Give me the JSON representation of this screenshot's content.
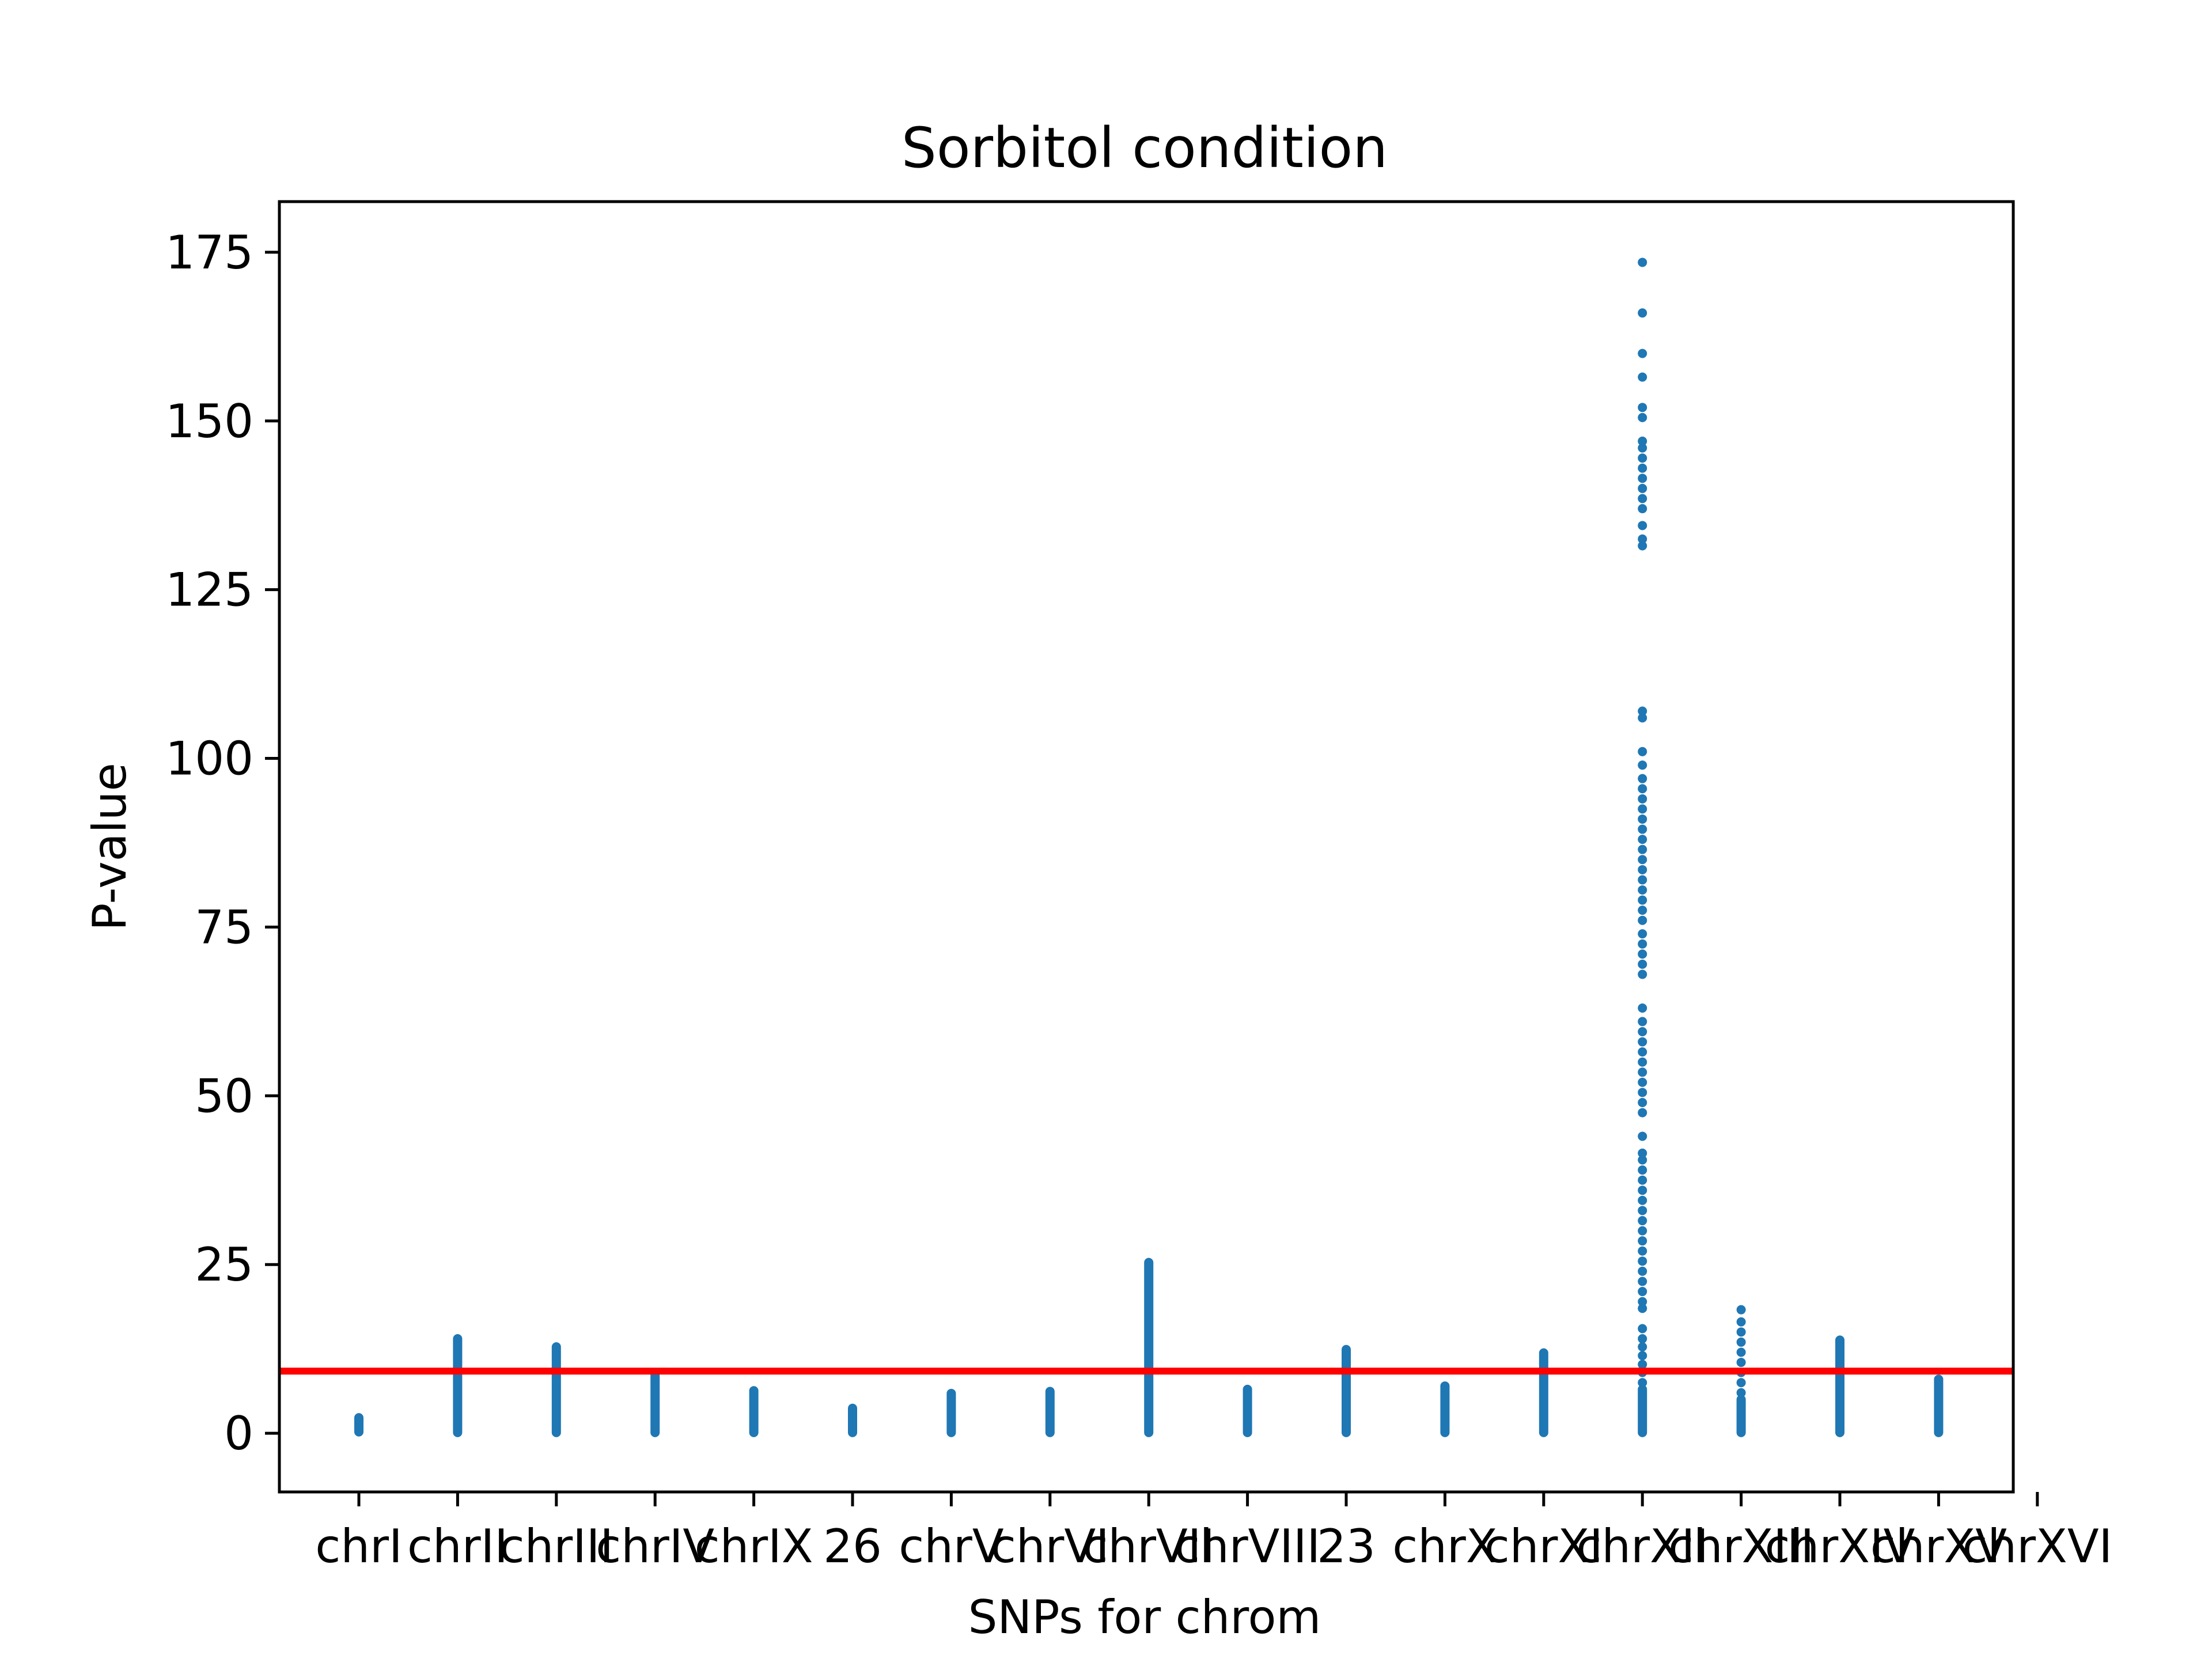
{
  "chart_data": {
    "type": "scatter",
    "title": "Sorbitol condition",
    "xlabel": "SNPs for chrom",
    "ylabel": "P-value",
    "categories": [
      "chrI",
      "chrII",
      "chrIII",
      "chrIV",
      "chrIX",
      "26",
      "chrV",
      "chrVI",
      "chrVII",
      "chrVIII",
      "23",
      "chrX",
      "chrXI",
      "chrXII",
      "chrXIII",
      "chrXIV",
      "chrXV",
      "chrXVI"
    ],
    "ylim": [
      -8.7,
      182.5
    ],
    "yticks": [
      0,
      25,
      50,
      75,
      100,
      125,
      150,
      175
    ],
    "ytick_labels": [
      "0",
      "25",
      "50",
      "75",
      "100",
      "125",
      "150",
      "175"
    ],
    "xtick_labels": [
      "chrI",
      "chrII",
      "chrIII",
      "chrIV",
      "chrIX",
      "26",
      "chrV",
      "chrVI",
      "chrVII",
      "chrVIII",
      "23",
      "chrX",
      "chrXI",
      "chrXII",
      "chrXIII",
      "chrXIV",
      "chrXV",
      "chrXVI"
    ],
    "threshold": 9.2,
    "grid": false,
    "series": [
      {
        "color": "#1f77b4",
        "points": [
          {
            "category": "chrI",
            "min": 0.2,
            "max": 2.3
          },
          {
            "category": "chrII",
            "min": 0.1,
            "max": 14.0
          },
          {
            "category": "chrIII",
            "min": 0.1,
            "max": 12.8
          },
          {
            "category": "chrIV",
            "min": 0.1,
            "max": 8.8
          },
          {
            "category": "chrIX",
            "min": 0.1,
            "max": 6.3
          },
          {
            "category": "26",
            "min": 0.1,
            "max": 3.7
          },
          {
            "category": "chrV",
            "min": 0.1,
            "max": 5.9
          },
          {
            "category": "chrVI",
            "min": 0.1,
            "max": 6.2
          },
          {
            "category": "chrVII",
            "min": 0.1,
            "max": 25.3
          },
          {
            "category": "chrVIII",
            "min": 0.1,
            "max": 6.5
          },
          {
            "category": "23",
            "min": 0.1,
            "max": 12.4
          },
          {
            "category": "chrX",
            "min": 0.1,
            "max": 7.0
          },
          {
            "category": "chrXI",
            "min": 0.1,
            "max": 11.9
          },
          {
            "category": "chrXII",
            "min": 0.1,
            "max": 6.5,
            "extra": [
              7.5,
              9.0,
              10.2,
              11.5,
              12.8,
              14.0,
              15.5,
              18.5,
              19.5,
              21.0,
              22.5,
              24.0,
              25.5,
              27.0,
              28.5,
              30.0,
              31.5,
              33.0,
              34.5,
              36.0,
              37.5,
              39.0,
              40.5,
              41.5,
              44.0,
              47.5,
              49.0,
              50.5,
              52.0,
              53.5,
              55.0,
              56.5,
              58.0,
              59.5,
              61.0,
              63.0,
              68.0,
              69.5,
              71.0,
              72.5,
              74.0,
              76.0,
              77.5,
              79.0,
              80.5,
              82.0,
              83.5,
              85.0,
              86.5,
              88.0,
              89.5,
              91.0,
              92.5,
              94.0,
              95.5,
              97.0,
              99.0,
              101.0,
              106.0,
              107.0,
              131.5,
              132.5,
              134.5,
              137.0,
              138.5,
              140.0,
              141.5,
              143.0,
              144.5,
              146.0,
              147.0,
              150.5,
              152.0,
              156.5,
              160.0,
              166.0,
              173.5
            ]
          },
          {
            "category": "chrXIII",
            "min": 0.1,
            "max": 5.0,
            "extra": [
              6.0,
              7.5,
              9.0,
              10.5,
              12.0,
              13.5,
              15.0,
              16.5,
              18.3
            ]
          },
          {
            "category": "chrXIV",
            "min": 0.1,
            "max": 13.8
          },
          {
            "category": "chrXV",
            "min": 0.1,
            "max": 8.0
          }
        ]
      }
    ]
  }
}
